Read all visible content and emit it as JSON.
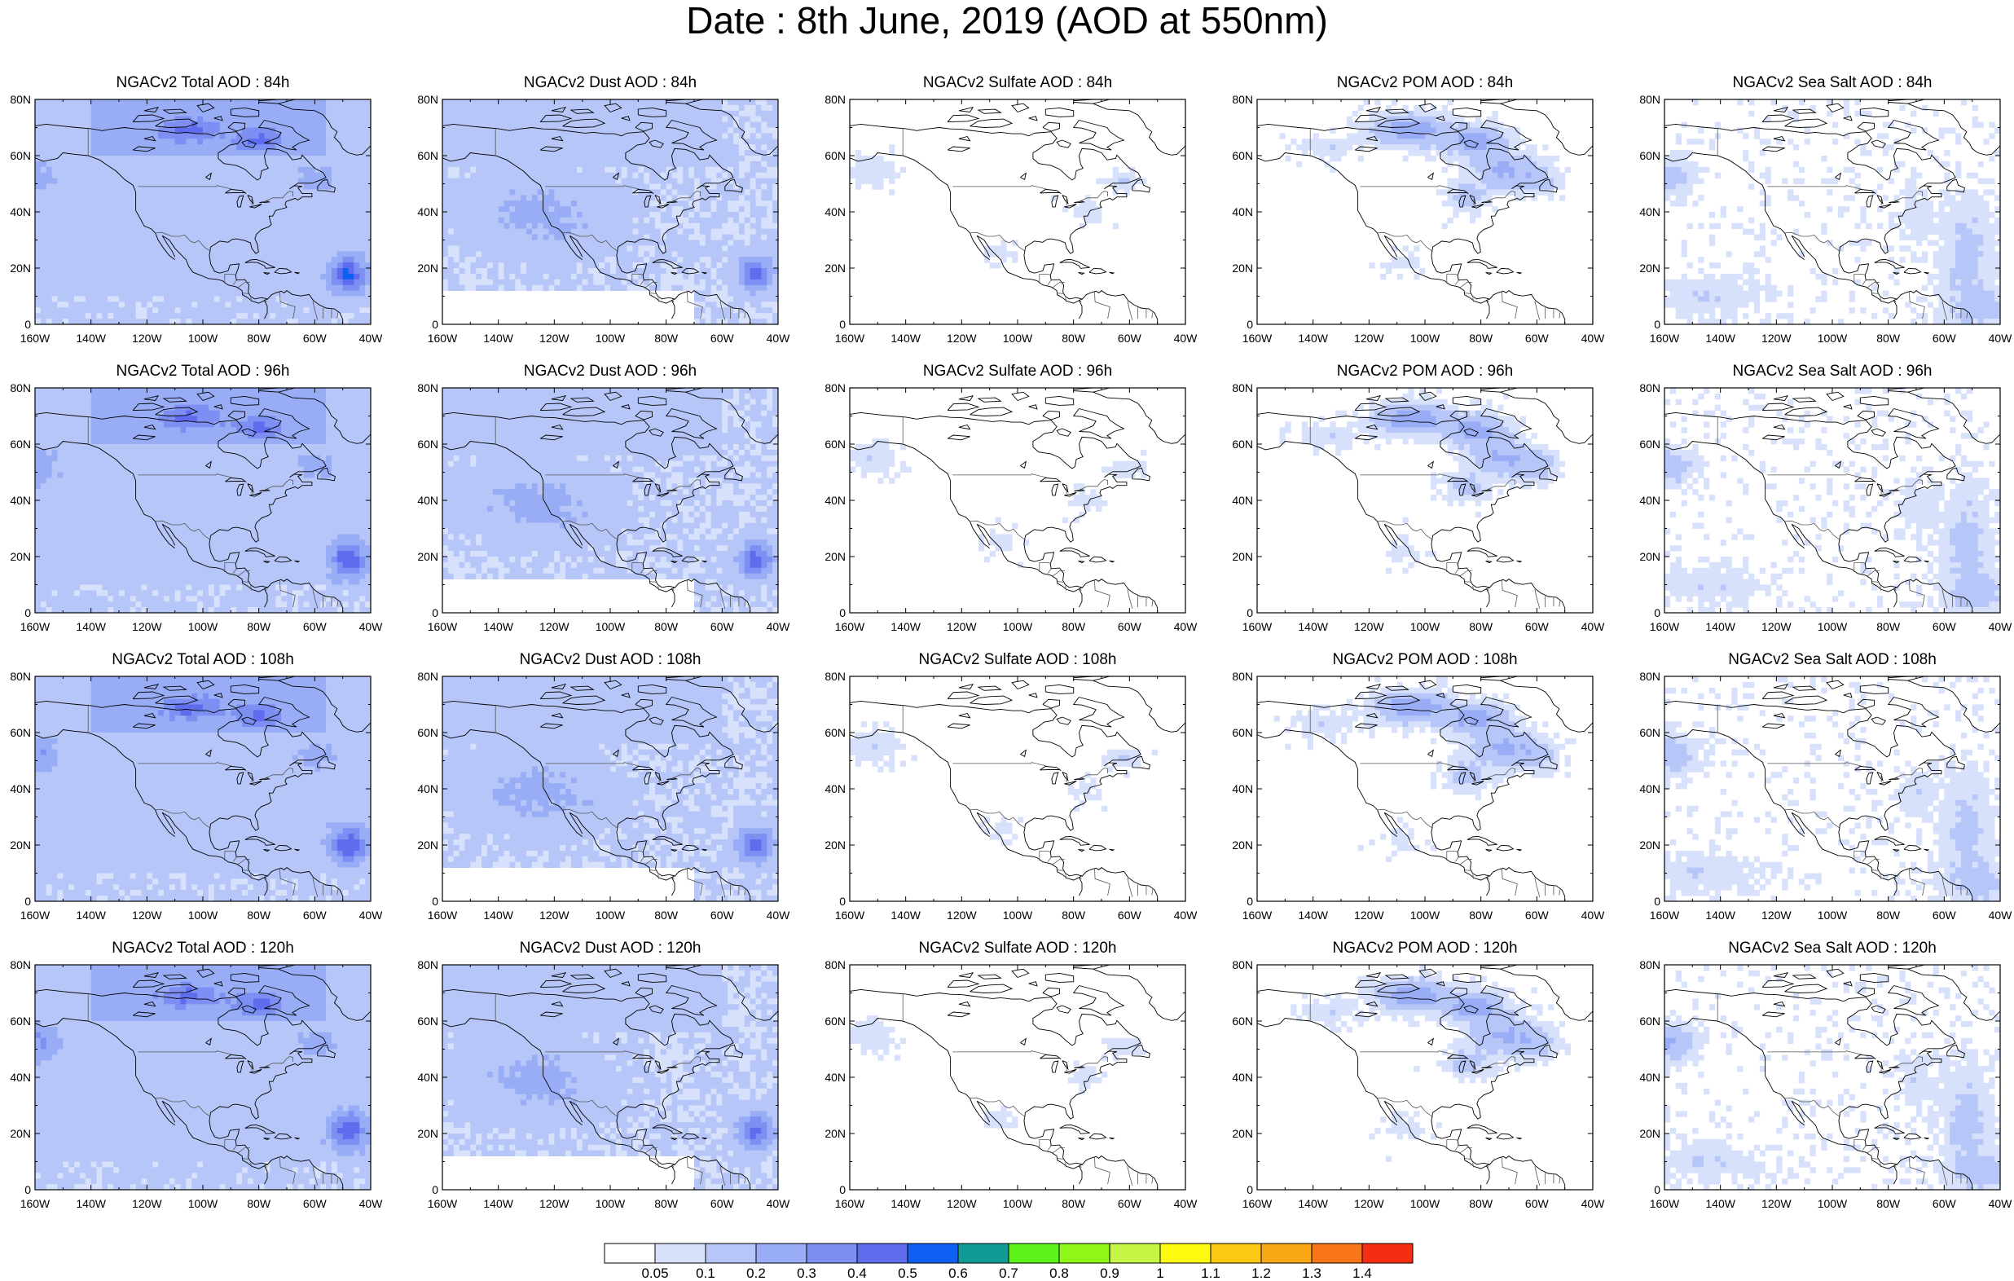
{
  "title": "Date : 8th June, 2019 (AOD at 550nm)",
  "lat_labels": [
    "80N",
    "60N",
    "40N",
    "20N",
    "0"
  ],
  "lon_labels": [
    "160W",
    "140W",
    "120W",
    "100W",
    "80W",
    "60W",
    "40W"
  ],
  "species": [
    {
      "key": "total",
      "titles": [
        "NGACv2 Total AOD : 84h",
        "NGACv2 Total AOD : 96h",
        "NGACv2 Total AOD : 108h",
        "NGACv2 Total AOD : 120h"
      ]
    },
    {
      "key": "dust",
      "titles": [
        "NGACv2 Dust AOD : 84h",
        "NGACv2 Dust AOD : 96h",
        "NGACv2 Dust AOD : 108h",
        "NGACv2 Dust AOD : 120h"
      ]
    },
    {
      "key": "sulfate",
      "titles": [
        "NGACv2 Sulfate AOD : 84h",
        "NGACv2 Sulfate AOD : 96h",
        "NGACv2 Sulfate AOD : 108h",
        "NGACv2 Sulfate AOD : 120h"
      ]
    },
    {
      "key": "pom",
      "titles": [
        "NGACv2 POM AOD : 84h",
        "NGACv2 POM AOD : 96h",
        "NGACv2 POM AOD : 108h",
        "NGACv2 POM AOD : 120h"
      ]
    },
    {
      "key": "seasalt",
      "titles": [
        "NGACv2 Sea Salt AOD : 84h",
        "NGACv2 Sea Salt AOD : 96h",
        "NGACv2 Sea Salt AOD : 108h",
        "NGACv2 Sea Salt  AOD : 120h"
      ]
    }
  ],
  "colorbar": {
    "labels": [
      "0.05",
      "0.1",
      "0.2",
      "0.3",
      "0.4",
      "0.5",
      "0.6",
      "0.7",
      "0.8",
      "0.9",
      "1",
      "1.1",
      "1.2",
      "1.3",
      "1.4"
    ],
    "colors": [
      "#ffffff",
      "#d8e1fb",
      "#b7c6f8",
      "#99adf6",
      "#7d8ff2",
      "#5e6ced",
      "#0f5ff3",
      "#129b96",
      "#5df218",
      "#8ef718",
      "#c7f545",
      "#fdfa0f",
      "#fdc814",
      "#f9a714",
      "#f87518",
      "#f72d12"
    ]
  }
}
